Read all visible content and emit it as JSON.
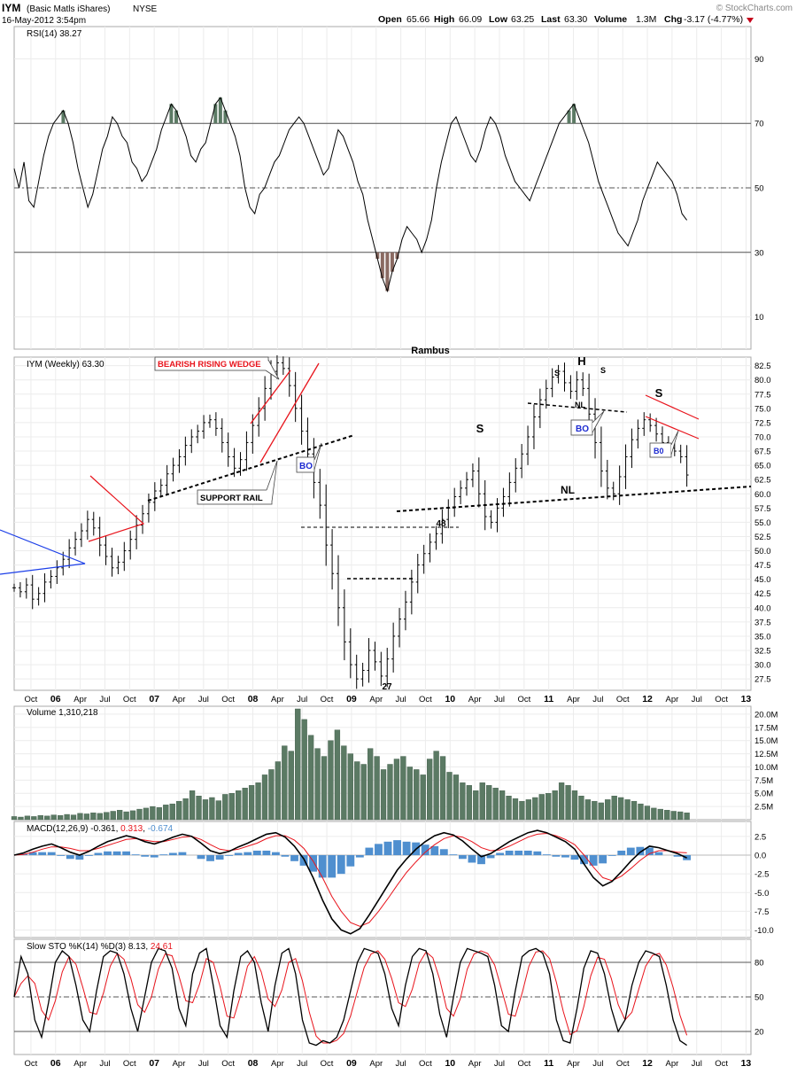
{
  "header": {
    "symbol": "IYM",
    "name": "(Basic Matls iShares)",
    "exchange": "NYSE",
    "datetime": "16-May-2012 3:54pm",
    "open_label": "Open",
    "open": "65.66",
    "high_label": "High",
    "high": "66.09",
    "low_label": "Low",
    "low": "63.25",
    "last_label": "Last",
    "last": "63.30",
    "volume_label": "Volume",
    "volume": "1.3M",
    "chg_label": "Chg",
    "chg": "-3.17 (-4.77%)",
    "source": "© StockCharts.com"
  },
  "author": "Rambus",
  "x_labels_top": [
    "Oct",
    "06",
    "Apr",
    "Jul",
    "Oct",
    "07",
    "Apr",
    "Jul",
    "Oct",
    "08",
    "Apr",
    "Jul",
    "Oct",
    "09",
    "Apr",
    "Jul",
    "Oct",
    "10",
    "Apr",
    "Jul",
    "Oct",
    "11",
    "Apr",
    "Jul",
    "Oct",
    "12",
    "Apr",
    "Jul",
    "Oct",
    "13"
  ],
  "x_labels_bottom": [
    "Oct",
    "06",
    "Apr",
    "Jul",
    "Oct",
    "07",
    "Apr",
    "Jul",
    "Oct",
    "08",
    "Apr",
    "Jul",
    "Oct",
    "09",
    "Apr",
    "Jul",
    "Oct",
    "10",
    "Apr",
    "Jul",
    "Oct",
    "11",
    "Apr",
    "Jul",
    "Oct",
    "12",
    "Apr",
    "Jul",
    "Oct",
    "13"
  ],
  "colors": {
    "price_bar": "#000000",
    "annotation_red": "#e8141c",
    "pattern_blue": "#1c3fe8",
    "volume_bar": "#5b7a64",
    "macd_hist": "#4f8fcf",
    "signal": "#e8141c",
    "rsi_fill_high": "#5b7a64",
    "rsi_fill_low": "#8a6a62",
    "bo_text": "#1c2ad0"
  },
  "chart_data": [
    {
      "type": "line",
      "title": "RSI(14) 38.27",
      "ylim": [
        0,
        100
      ],
      "yticks": [
        "90",
        "70",
        "50",
        "30",
        "10"
      ],
      "reference_lines": [
        70,
        50,
        30
      ],
      "x_start": 2005.58,
      "x_end": 2012.4,
      "values": [
        56,
        50,
        58,
        46,
        44,
        52,
        60,
        66,
        70,
        72,
        74,
        70,
        64,
        56,
        50,
        44,
        48,
        55,
        62,
        66,
        72,
        70,
        66,
        64,
        58,
        56,
        52,
        54,
        58,
        62,
        68,
        72,
        76,
        74,
        70,
        66,
        60,
        58,
        62,
        64,
        70,
        76,
        78,
        74,
        70,
        66,
        60,
        50,
        44,
        42,
        48,
        50,
        54,
        58,
        60,
        64,
        68,
        70,
        72,
        70,
        66,
        62,
        58,
        54,
        56,
        62,
        68,
        66,
        62,
        58,
        52,
        48,
        40,
        34,
        28,
        22,
        18,
        24,
        28,
        34,
        38,
        36,
        34,
        30,
        34,
        40,
        50,
        58,
        64,
        70,
        72,
        68,
        64,
        60,
        58,
        62,
        68,
        72,
        70,
        66,
        60,
        56,
        52,
        50,
        48,
        46,
        50,
        54,
        58,
        62,
        66,
        70,
        72,
        74,
        76,
        72,
        68,
        64,
        58,
        52,
        48,
        44,
        40,
        36,
        34,
        32,
        36,
        40,
        46,
        50,
        54,
        58,
        56,
        54,
        52,
        48,
        42,
        40
      ]
    },
    {
      "type": "ohlc",
      "title": "IYM (Weekly) 63.30",
      "ylim": [
        25.5,
        84
      ],
      "yticks": [
        "82.5",
        "80.0",
        "77.5",
        "75.0",
        "72.5",
        "70.0",
        "67.5",
        "65.0",
        "62.5",
        "60.0",
        "57.5",
        "55.0",
        "52.5",
        "50.0",
        "47.5",
        "45.0",
        "42.5",
        "40.0",
        "37.5",
        "35.0",
        "32.5",
        "30.0",
        "27.5"
      ],
      "x_start": 2005.58,
      "x_end": 2012.4,
      "closes": [
        43.5,
        42.8,
        44.0,
        41.5,
        42.5,
        44.5,
        45.5,
        47.0,
        48.5,
        50.5,
        52.0,
        53.5,
        55.5,
        54.0,
        51.0,
        49.0,
        47.0,
        48.0,
        50.0,
        52.0,
        54.5,
        56.5,
        58.5,
        60.5,
        61.5,
        63.5,
        65.0,
        66.5,
        68.5,
        70.0,
        71.0,
        72.5,
        73.0,
        71.5,
        69.0,
        66.5,
        64.5,
        66.0,
        69.0,
        72.0,
        75.0,
        78.5,
        81.5,
        83.0,
        82.0,
        79.0,
        75.0,
        71.0,
        67.0,
        62.0,
        58.0,
        51.0,
        46.0,
        40.0,
        34.0,
        30.0,
        27.5,
        29.0,
        32.5,
        30.5,
        28.0,
        31.0,
        35.0,
        38.0,
        41.0,
        44.5,
        47.5,
        49.5,
        51.5,
        53.0,
        55.5,
        57.5,
        59.5,
        61.0,
        62.5,
        64.0,
        60.0,
        56.0,
        55.0,
        57.5,
        59.5,
        62.0,
        64.5,
        67.0,
        70.0,
        73.5,
        76.5,
        78.5,
        80.5,
        81.5,
        79.5,
        78.0,
        80.0,
        78.5,
        74.0,
        69.0,
        64.0,
        61.0,
        60.0,
        63.0,
        66.5,
        69.5,
        71.5,
        73.0,
        72.0,
        70.5,
        69.0,
        68.0,
        67.5,
        66.5,
        63.3
      ]
    },
    {
      "type": "bar",
      "title": "Volume 1,310,218",
      "ylim": [
        0,
        21.5
      ],
      "yticks": [
        "20.0M",
        "17.5M",
        "15.0M",
        "12.5M",
        "10.0M",
        "7.5M",
        "5.0M",
        "2.5M"
      ],
      "x_start": 2005.58,
      "x_end": 2012.4,
      "values": [
        0.6,
        0.5,
        0.7,
        0.6,
        0.8,
        0.7,
        0.9,
        0.8,
        1.0,
        0.9,
        1.2,
        1.1,
        1.3,
        1.2,
        1.4,
        1.6,
        1.8,
        1.5,
        1.7,
        2.0,
        2.2,
        2.5,
        2.3,
        2.8,
        3.0,
        3.5,
        4.0,
        5.5,
        4.5,
        3.8,
        4.2,
        3.6,
        4.8,
        5.0,
        5.5,
        6.0,
        6.5,
        7.0,
        8.5,
        9.5,
        11.0,
        14.0,
        13.0,
        21.0,
        19.0,
        16.0,
        13.5,
        12.0,
        15.0,
        17.0,
        14.0,
        12.5,
        11.0,
        10.5,
        13.5,
        12.0,
        9.5,
        10.5,
        11.5,
        12.0,
        10.0,
        9.5,
        8.5,
        11.5,
        13.0,
        12.0,
        9.0,
        8.5,
        7.0,
        6.5,
        5.5,
        7.0,
        6.5,
        6.0,
        5.5,
        4.5,
        4.0,
        3.5,
        3.8,
        4.2,
        4.8,
        5.0,
        5.5,
        7.0,
        6.5,
        5.5,
        4.5,
        3.8,
        3.5,
        3.2,
        3.8,
        4.5,
        4.2,
        3.8,
        3.5,
        3.0,
        2.6,
        2.2,
        2.0,
        1.8,
        1.6,
        1.5,
        1.3
      ]
    },
    {
      "type": "line",
      "title": "MACD(12,26,9) -0.361, 0.313, -0.674",
      "macd_value": "-0.361",
      "signal_value": "0.313",
      "hist_value": "-0.674",
      "ylim": [
        -11,
        4.5
      ],
      "yticks": [
        "2.5",
        "0.0",
        "-2.5",
        "-5.0",
        "-7.5",
        "-10.0"
      ],
      "x_start": 2005.58,
      "x_end": 2012.4,
      "macd": [
        0.0,
        0.3,
        0.8,
        1.2,
        1.5,
        1.0,
        0.4,
        0.0,
        0.5,
        1.2,
        1.8,
        2.2,
        2.6,
        2.3,
        1.8,
        1.5,
        1.9,
        2.4,
        2.8,
        2.5,
        1.6,
        0.6,
        0.2,
        0.5,
        1.1,
        1.6,
        2.2,
        2.8,
        3.0,
        2.4,
        1.2,
        -0.5,
        -3.0,
        -6.0,
        -8.5,
        -10.0,
        -10.5,
        -9.8,
        -8.0,
        -6.0,
        -4.0,
        -2.0,
        -0.5,
        0.8,
        1.8,
        2.6,
        3.0,
        2.7,
        1.9,
        0.8,
        -0.2,
        0.2,
        1.0,
        1.8,
        2.4,
        3.0,
        3.3,
        3.0,
        2.4,
        1.8,
        0.8,
        -1.2,
        -3.0,
        -4.1,
        -3.5,
        -2.2,
        -0.8,
        0.4,
        1.2,
        1.0,
        0.6,
        0.2,
        -0.36
      ],
      "signal": [
        0.0,
        0.1,
        0.4,
        0.8,
        1.1,
        1.1,
        0.9,
        0.6,
        0.6,
        0.9,
        1.3,
        1.7,
        2.1,
        2.2,
        2.0,
        1.8,
        1.8,
        2.1,
        2.4,
        2.5,
        2.1,
        1.4,
        0.8,
        0.6,
        0.8,
        1.2,
        1.6,
        2.2,
        2.6,
        2.6,
        2.0,
        0.9,
        -0.8,
        -3.0,
        -5.5,
        -7.5,
        -9.0,
        -9.5,
        -9.0,
        -7.5,
        -5.8,
        -4.0,
        -2.3,
        -0.9,
        0.4,
        1.4,
        2.2,
        2.6,
        2.4,
        1.8,
        1.0,
        0.6,
        0.7,
        1.2,
        1.8,
        2.4,
        2.8,
        2.9,
        2.6,
        2.1,
        1.4,
        0.0,
        -1.6,
        -3.0,
        -3.4,
        -2.8,
        -1.8,
        -0.7,
        0.2,
        0.6,
        0.6,
        0.4,
        0.31
      ]
    },
    {
      "type": "line",
      "title": "Slow STO %K(14) %D(3) 8.13, 24.61",
      "k_value": "8.13",
      "d_value": "24.61",
      "ylim": [
        0,
        100
      ],
      "yticks": [
        "80",
        "50",
        "20"
      ],
      "reference_lines": [
        80,
        50,
        20
      ],
      "x_start": 2005.58,
      "x_end": 2012.4,
      "k": [
        50,
        85,
        70,
        30,
        15,
        45,
        80,
        90,
        85,
        60,
        30,
        20,
        55,
        85,
        90,
        88,
        70,
        40,
        20,
        50,
        80,
        92,
        90,
        75,
        40,
        25,
        70,
        88,
        92,
        60,
        25,
        15,
        55,
        85,
        90,
        80,
        45,
        20,
        60,
        88,
        92,
        70,
        30,
        10,
        8,
        12,
        10,
        15,
        30,
        55,
        80,
        92,
        90,
        88,
        70,
        40,
        25,
        60,
        85,
        92,
        90,
        70,
        35,
        15,
        50,
        80,
        92,
        90,
        88,
        85,
        60,
        25,
        20,
        55,
        85,
        90,
        92,
        88,
        70,
        30,
        12,
        10,
        40,
        75,
        90,
        88,
        70,
        40,
        20,
        30,
        60,
        80,
        90,
        88,
        85,
        60,
        30,
        12,
        8
      ]
    }
  ],
  "annotations": {
    "bearish_rising_wedge": "BEARISH RISING WEDGE",
    "support_rail": "SUPPORT RAIL",
    "bo1": "BO",
    "bo2": "BO",
    "bo3": "B0",
    "s1": "S",
    "h": "H",
    "s_small_left": "S",
    "s_small_right": "S",
    "s_right": "S",
    "nl_top": "NL",
    "nl_bottom": "NL",
    "lvl48": "48",
    "lvl27": "27"
  }
}
